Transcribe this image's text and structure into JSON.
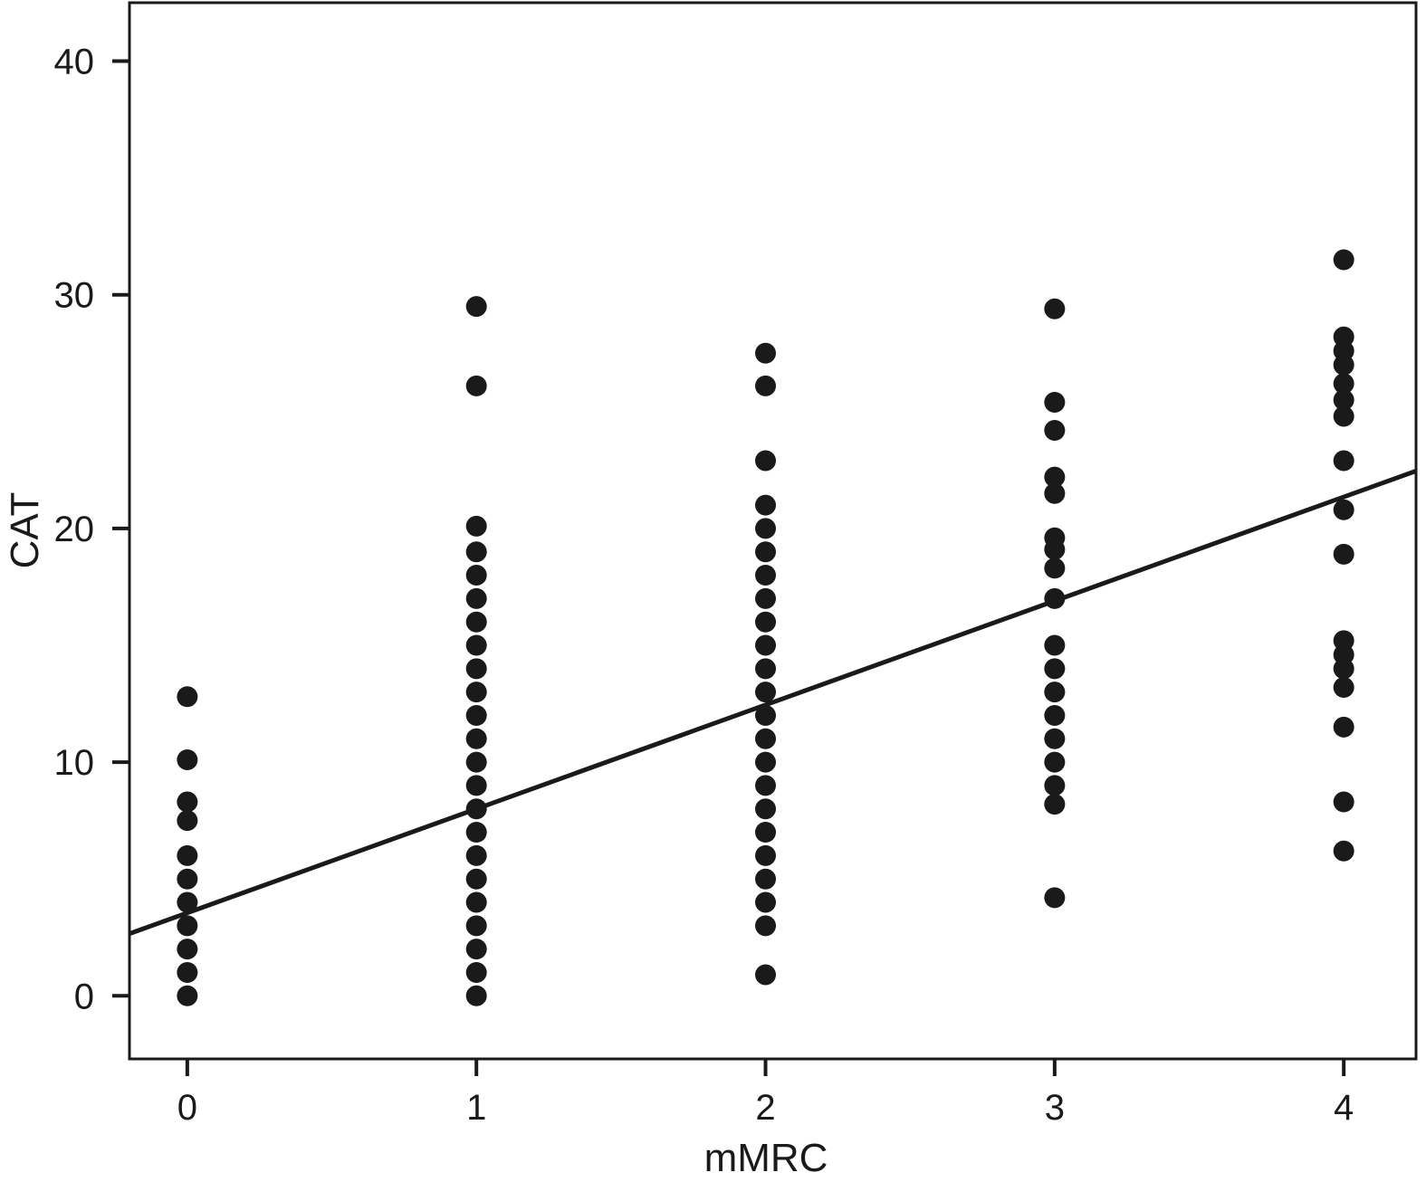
{
  "chart_data": {
    "type": "scatter",
    "title": "",
    "xlabel": "mMRC",
    "ylabel": "CAT",
    "xlim": [
      -0.2,
      4.25
    ],
    "ylim": [
      -2.7,
      42.5
    ],
    "xticks": [
      0,
      1,
      2,
      3,
      4
    ],
    "yticks": [
      0,
      10,
      20,
      30,
      40
    ],
    "grid": false,
    "legend": "none",
    "colors": {
      "points": "#1a1a1a",
      "line": "#1a1a1a",
      "axes": "#1a1a1a"
    },
    "series": [
      {
        "points": [
          {
            "x": 0,
            "y": 0
          },
          {
            "x": 0,
            "y": 1
          },
          {
            "x": 0,
            "y": 2
          },
          {
            "x": 0,
            "y": 3
          },
          {
            "x": 0,
            "y": 4
          },
          {
            "x": 0,
            "y": 5
          },
          {
            "x": 0,
            "y": 6
          },
          {
            "x": 0,
            "y": 7.5
          },
          {
            "x": 0,
            "y": 8.3
          },
          {
            "x": 0,
            "y": 10.1
          },
          {
            "x": 0,
            "y": 12.8
          },
          {
            "x": 1,
            "y": 0
          },
          {
            "x": 1,
            "y": 1
          },
          {
            "x": 1,
            "y": 2
          },
          {
            "x": 1,
            "y": 3
          },
          {
            "x": 1,
            "y": 4
          },
          {
            "x": 1,
            "y": 5
          },
          {
            "x": 1,
            "y": 6
          },
          {
            "x": 1,
            "y": 7
          },
          {
            "x": 1,
            "y": 8
          },
          {
            "x": 1,
            "y": 9
          },
          {
            "x": 1,
            "y": 10
          },
          {
            "x": 1,
            "y": 11
          },
          {
            "x": 1,
            "y": 12
          },
          {
            "x": 1,
            "y": 13
          },
          {
            "x": 1,
            "y": 14
          },
          {
            "x": 1,
            "y": 15
          },
          {
            "x": 1,
            "y": 16
          },
          {
            "x": 1,
            "y": 17
          },
          {
            "x": 1,
            "y": 18
          },
          {
            "x": 1,
            "y": 19
          },
          {
            "x": 1,
            "y": 20.1
          },
          {
            "x": 1,
            "y": 26.1
          },
          {
            "x": 1,
            "y": 29.5
          },
          {
            "x": 2,
            "y": 0.9
          },
          {
            "x": 2,
            "y": 3
          },
          {
            "x": 2,
            "y": 4
          },
          {
            "x": 2,
            "y": 5
          },
          {
            "x": 2,
            "y": 6
          },
          {
            "x": 2,
            "y": 7
          },
          {
            "x": 2,
            "y": 8
          },
          {
            "x": 2,
            "y": 9
          },
          {
            "x": 2,
            "y": 10
          },
          {
            "x": 2,
            "y": 11
          },
          {
            "x": 2,
            "y": 12
          },
          {
            "x": 2,
            "y": 13
          },
          {
            "x": 2,
            "y": 14
          },
          {
            "x": 2,
            "y": 15
          },
          {
            "x": 2,
            "y": 16
          },
          {
            "x": 2,
            "y": 17
          },
          {
            "x": 2,
            "y": 18
          },
          {
            "x": 2,
            "y": 19
          },
          {
            "x": 2,
            "y": 20
          },
          {
            "x": 2,
            "y": 21
          },
          {
            "x": 2,
            "y": 22.9
          },
          {
            "x": 2,
            "y": 26.1
          },
          {
            "x": 2,
            "y": 27.5
          },
          {
            "x": 3,
            "y": 4.2
          },
          {
            "x": 3,
            "y": 8.2
          },
          {
            "x": 3,
            "y": 9
          },
          {
            "x": 3,
            "y": 10
          },
          {
            "x": 3,
            "y": 11
          },
          {
            "x": 3,
            "y": 12
          },
          {
            "x": 3,
            "y": 13
          },
          {
            "x": 3,
            "y": 14
          },
          {
            "x": 3,
            "y": 15
          },
          {
            "x": 3,
            "y": 17
          },
          {
            "x": 3,
            "y": 18.3
          },
          {
            "x": 3,
            "y": 19.1
          },
          {
            "x": 3,
            "y": 19.6
          },
          {
            "x": 3,
            "y": 21.5
          },
          {
            "x": 3,
            "y": 22.2
          },
          {
            "x": 3,
            "y": 24.2
          },
          {
            "x": 3,
            "y": 25.4
          },
          {
            "x": 3,
            "y": 29.4
          },
          {
            "x": 4,
            "y": 6.2
          },
          {
            "x": 4,
            "y": 8.3
          },
          {
            "x": 4,
            "y": 11.5
          },
          {
            "x": 4,
            "y": 13.2
          },
          {
            "x": 4,
            "y": 14
          },
          {
            "x": 4,
            "y": 14.6
          },
          {
            "x": 4,
            "y": 15.2
          },
          {
            "x": 4,
            "y": 18.9
          },
          {
            "x": 4,
            "y": 20.8
          },
          {
            "x": 4,
            "y": 22.9
          },
          {
            "x": 4,
            "y": 24.8
          },
          {
            "x": 4,
            "y": 25.5
          },
          {
            "x": 4,
            "y": 26.2
          },
          {
            "x": 4,
            "y": 27
          },
          {
            "x": 4,
            "y": 27.6
          },
          {
            "x": 4,
            "y": 28.2
          },
          {
            "x": 4,
            "y": 31.5
          }
        ]
      }
    ],
    "fit_line": {
      "intercept": 3.55,
      "slope": 4.45
    }
  }
}
